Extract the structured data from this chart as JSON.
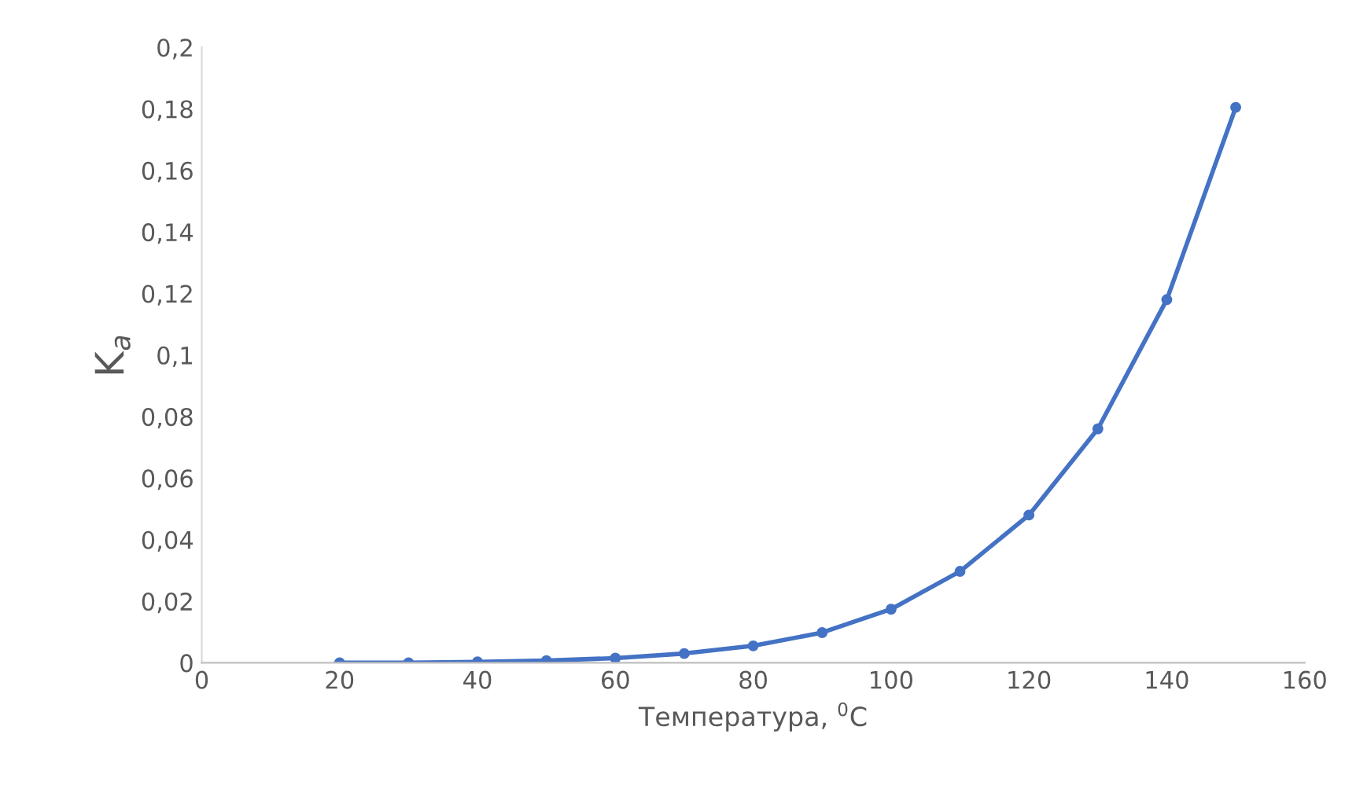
{
  "chart_data": {
    "type": "line",
    "xlabel": "Температура, $^{0}$C",
    "ylabel": "K$_{a}$",
    "x": [
      20,
      30,
      40,
      50,
      60,
      70,
      80,
      90,
      100,
      110,
      120,
      130,
      140,
      150
    ],
    "series": [
      {
        "color": "#4472c4",
        "values": [
          0.0,
          0.0,
          0.0003,
          0.0007,
          0.0015,
          0.003,
          0.0055,
          0.0098,
          0.0174,
          0.0297,
          0.048,
          0.076,
          0.118,
          0.1805
        ]
      }
    ],
    "marker": "circle",
    "line_style": "solid",
    "grid": false,
    "legend": false,
    "xlim": [
      0,
      160
    ],
    "xticks": [
      0,
      20,
      40,
      60,
      80,
      100,
      120,
      140,
      160
    ],
    "ylim": [
      0,
      0.2
    ],
    "yticks": [
      {
        "value": 0,
        "label": "0"
      },
      {
        "value": 0.02,
        "label": "0,02"
      },
      {
        "value": 0.04,
        "label": "0,04"
      },
      {
        "value": 0.06,
        "label": "0,06"
      },
      {
        "value": 0.08,
        "label": "0,08"
      },
      {
        "value": 0.1,
        "label": "0,1"
      },
      {
        "value": 0.12,
        "label": "0,12"
      },
      {
        "value": 0.14,
        "label": "0,14"
      },
      {
        "value": 0.16,
        "label": "0,16"
      },
      {
        "value": 0.18,
        "label": "0,18"
      },
      {
        "value": 0.2,
        "label": "0,2"
      }
    ]
  }
}
